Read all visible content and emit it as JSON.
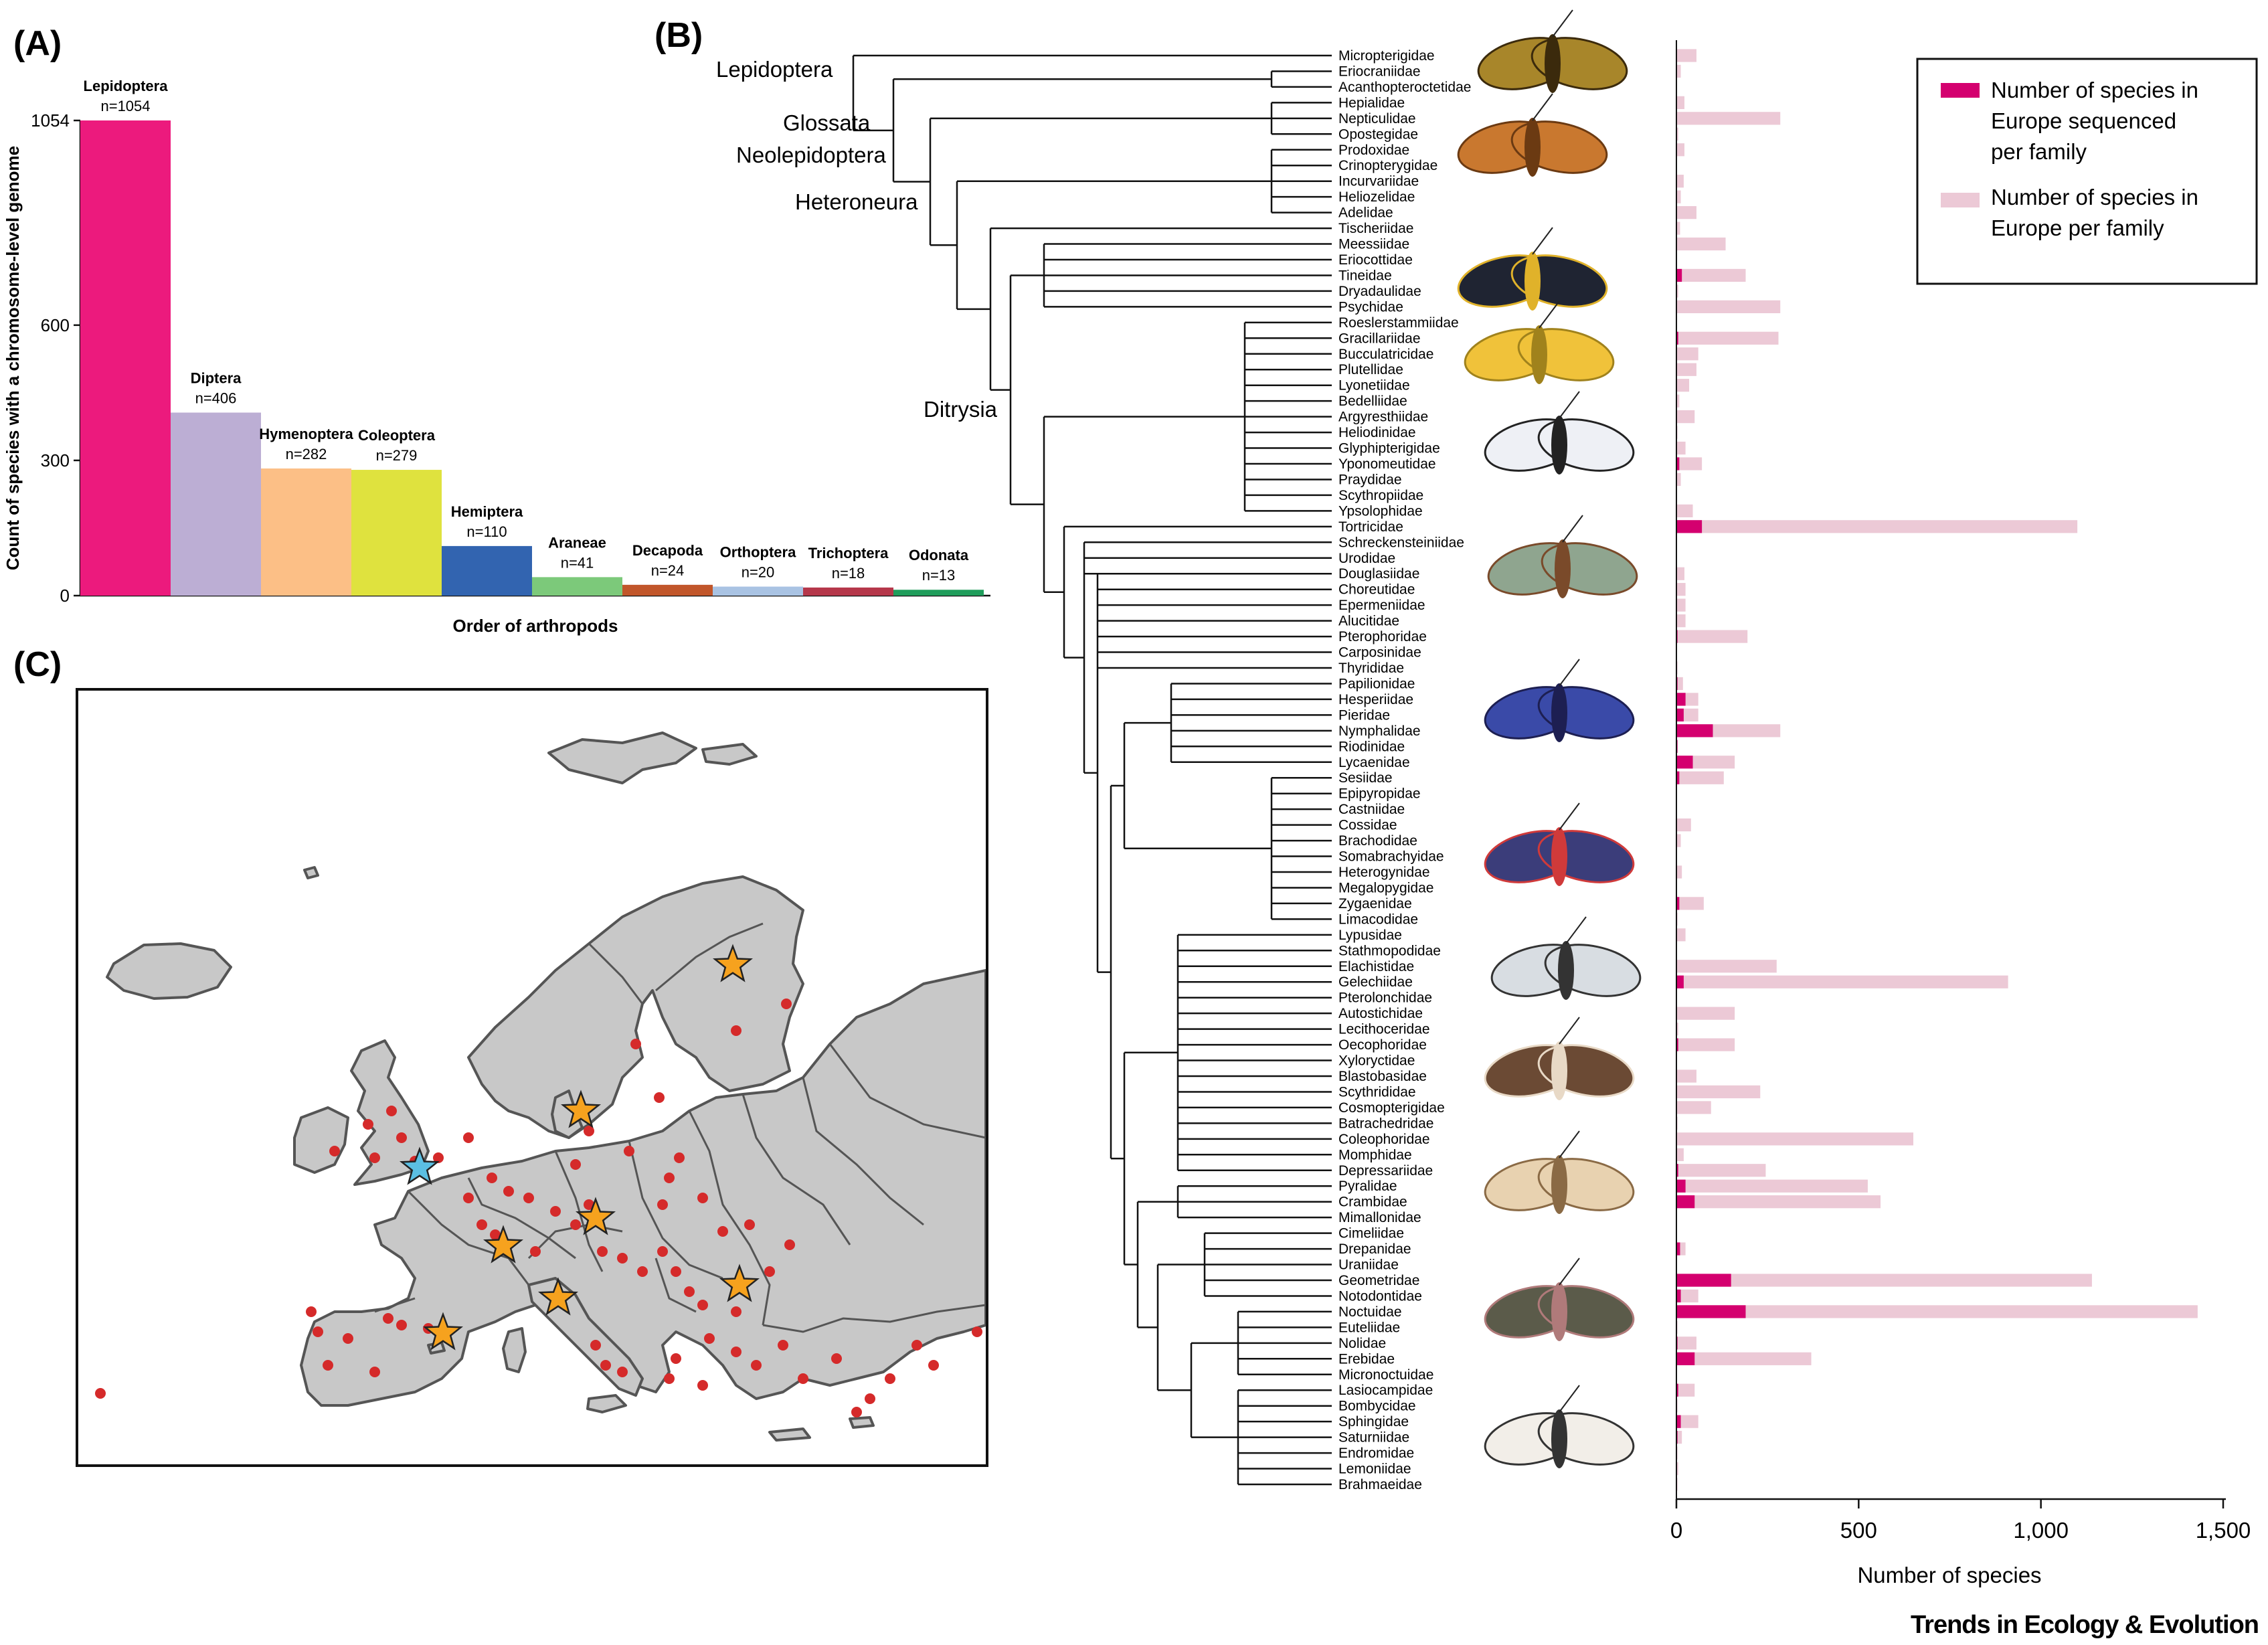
{
  "panel_labels": [
    "(A)",
    "(B)",
    "(C)"
  ],
  "footer": "Trends in Ecology & Evolution",
  "colors": {
    "sequenced": "#d4006f",
    "total": "#ecc9d6",
    "map_land": "#c8c8c8",
    "map_border": "#555555",
    "sample_dot": "#d52a2a",
    "star_orange": "#f6a21e",
    "star_blue": "#5bbfe3"
  },
  "chart_data": [
    {
      "type": "bar",
      "panel": "(A)",
      "xlabel": "Order of arthropods",
      "ylabel": "Count of species with a chromosome-level genome",
      "ylim": [
        0,
        1054
      ],
      "yticks": [
        0,
        300,
        600,
        1054
      ],
      "categories": [
        "Lepidoptera",
        "Diptera",
        "Hymenoptera",
        "Coleoptera",
        "Hemiptera",
        "Araneae",
        "Decapoda",
        "Orthoptera",
        "Trichoptera",
        "Odonata"
      ],
      "values": [
        1054,
        406,
        282,
        279,
        110,
        41,
        24,
        20,
        18,
        13
      ],
      "value_labels": [
        "n=1054",
        "n=406",
        "n=282",
        "n=279",
        "n=110",
        "n=41",
        "n=24",
        "n=20",
        "n=18",
        "n=13"
      ],
      "bar_colors": [
        "#ec1a7d",
        "#bcaed4",
        "#fcbf86",
        "#dfe23e",
        "#3264b0",
        "#7cc97a",
        "#c1562a",
        "#a9c3e3",
        "#b5374a",
        "#1f9d5b"
      ]
    },
    {
      "type": "bar",
      "orientation": "horizontal",
      "panel": "(B)",
      "xlabel": "Number of species",
      "xlim": [
        0,
        1500
      ],
      "xticks": [
        "0",
        "500",
        "1,000",
        "1,500"
      ],
      "xtick_values": [
        0,
        500,
        1000,
        1500
      ],
      "legend": [
        "Number of species in Europe sequenced per family",
        "Number of species in Europe per family"
      ],
      "legend_position": "top-right",
      "clade_labels": [
        "Lepidoptera",
        "Glossata",
        "Neolepidoptera",
        "Heteroneura",
        "Ditrysia"
      ],
      "families": [
        "Micropterigidae",
        "Eriocraniidae",
        "Acanthopteroctetidae",
        "Hepialidae",
        "Nepticulidae",
        "Opostegidae",
        "Prodoxidae",
        "Crinopterygidae",
        "Incurvariidae",
        "Heliozelidae",
        "Adelidae",
        "Tischeriidae",
        "Meessiidae",
        "Eriocottidae",
        "Tineidae",
        "Dryadaulidae",
        "Psychidae",
        "Roeslerstammiidae",
        "Gracillariidae",
        "Bucculatricidae",
        "Plutellidae",
        "Lyonetiidae",
        "Bedelliidae",
        "Argyresthiidae",
        "Heliodinidae",
        "Glyphipterigidae",
        "Yponomeutidae",
        "Praydidae",
        "Scythropiidae",
        "Ypsolophidae",
        "Tortricidae",
        "Schreckensteiniidae",
        "Urodidae",
        "Douglasiidae",
        "Choreutidae",
        "Epermeniidae",
        "Alucitidae",
        "Pterophoridae",
        "Carposinidae",
        "Thyrididae",
        "Papilionidae",
        "Hesperiidae",
        "Pieridae",
        "Nymphalidae",
        "Riodinidae",
        "Lycaenidae",
        "Sesiidae",
        "Epipyropidae",
        "Castniidae",
        "Cossidae",
        "Brachodidae",
        "Somabrachyidae",
        "Heterogynidae",
        "Megalopygidae",
        "Zygaenidae",
        "Limacodidae",
        "Lypusidae",
        "Stathmopodidae",
        "Elachistidae",
        "Gelechiidae",
        "Pterolonchidae",
        "Autostichidae",
        "Lecithoceridae",
        "Oecophoridae",
        "Xyloryctidae",
        "Blastobasidae",
        "Scythrididae",
        "Cosmopterigidae",
        "Batrachedridae",
        "Coleophoridae",
        "Momphidae",
        "Depressariidae",
        "Pyralidae",
        "Crambidae",
        "Mimallonidae",
        "Cimeliidae",
        "Drepanidae",
        "Uraniidae",
        "Geometridae",
        "Notodontidae",
        "Noctuidae",
        "Euteliidae",
        "Nolidae",
        "Erebidae",
        "Micronoctuidae",
        "Lasiocampidae",
        "Bombycidae",
        "Sphingidae",
        "Saturniidae",
        "Endromidae",
        "Lemoniidae",
        "Brahmaeidae"
      ],
      "series": [
        {
          "name": "Number of species in Europe sequenced per family",
          "values": [
            0,
            0,
            0,
            0,
            0,
            0,
            0,
            0,
            0,
            0,
            0,
            0,
            0,
            0,
            15,
            0,
            0,
            0,
            5,
            0,
            0,
            0,
            0,
            0,
            0,
            0,
            8,
            0,
            0,
            0,
            70,
            0,
            0,
            0,
            0,
            0,
            0,
            3,
            0,
            0,
            3,
            25,
            20,
            100,
            3,
            45,
            8,
            0,
            0,
            0,
            0,
            0,
            0,
            0,
            8,
            0,
            0,
            0,
            0,
            20,
            0,
            0,
            0,
            5,
            0,
            0,
            0,
            0,
            0,
            0,
            0,
            5,
            25,
            50,
            0,
            0,
            10,
            0,
            150,
            12,
            190,
            0,
            3,
            50,
            0,
            5,
            0,
            12,
            3,
            0,
            0,
            0
          ]
        },
        {
          "name": "Number of species in Europe per family",
          "values": [
            55,
            12,
            2,
            22,
            285,
            5,
            22,
            0,
            20,
            12,
            55,
            10,
            135,
            2,
            190,
            5,
            285,
            2,
            280,
            60,
            55,
            35,
            8,
            50,
            3,
            25,
            70,
            12,
            2,
            45,
            1100,
            0,
            0,
            22,
            25,
            25,
            25,
            195,
            0,
            3,
            18,
            60,
            60,
            285,
            3,
            160,
            130,
            0,
            0,
            40,
            12,
            0,
            15,
            0,
            75,
            3,
            25,
            0,
            275,
            910,
            0,
            160,
            5,
            160,
            0,
            55,
            230,
            95,
            3,
            650,
            20,
            245,
            525,
            560,
            0,
            0,
            25,
            0,
            1140,
            60,
            1430,
            3,
            55,
            370,
            0,
            50,
            3,
            60,
            15,
            3,
            5,
            3
          ]
        }
      ]
    }
  ]
}
